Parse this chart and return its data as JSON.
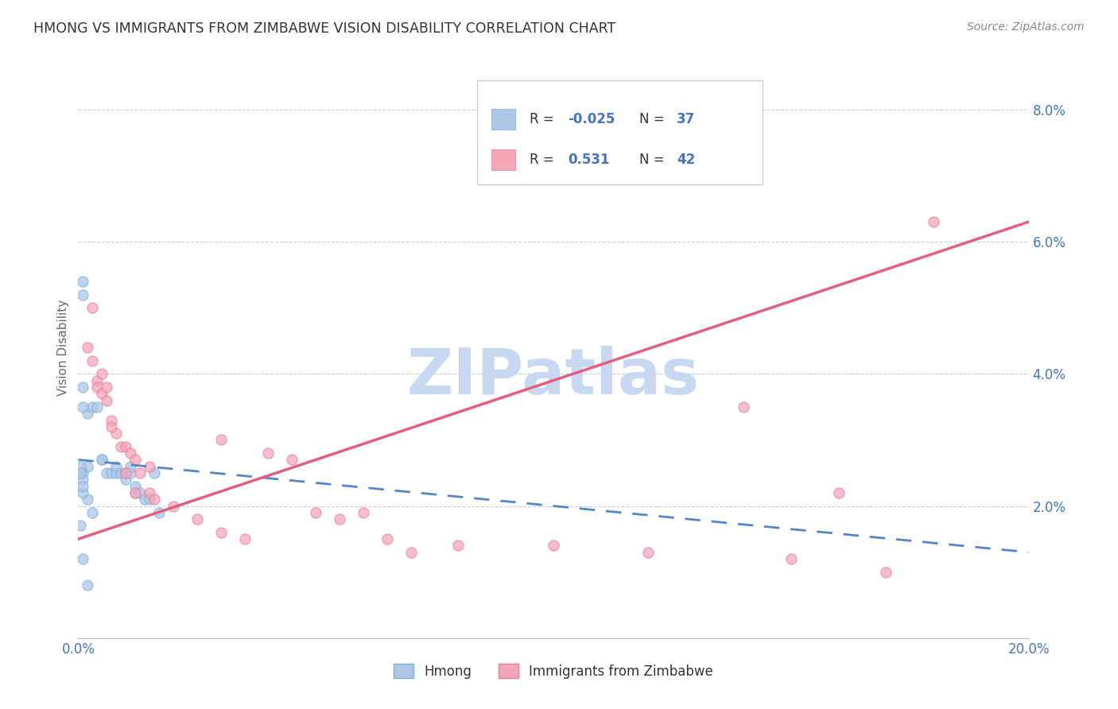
{
  "title": "HMONG VS IMMIGRANTS FROM ZIMBABWE VISION DISABILITY CORRELATION CHART",
  "source": "Source: ZipAtlas.com",
  "ylabel": "Vision Disability",
  "xlim": [
    0.0,
    0.2
  ],
  "ylim": [
    0.0,
    0.088
  ],
  "x_tick_positions": [
    0.0,
    0.04,
    0.08,
    0.12,
    0.16,
    0.2
  ],
  "x_tick_labels": [
    "0.0%",
    "",
    "",
    "",
    "",
    "20.0%"
  ],
  "y_tick_positions": [
    0.0,
    0.02,
    0.04,
    0.06,
    0.08
  ],
  "y_tick_labels": [
    "",
    "2.0%",
    "4.0%",
    "6.0%",
    "8.0%"
  ],
  "hmong_color": "#aec6e8",
  "hmong_edge_color": "#7bafd4",
  "zimbabwe_color": "#f4a7b9",
  "zimbabwe_edge_color": "#e87a9a",
  "hmong_line_color": "#5585c8",
  "zimbabwe_line_color": "#e0607e",
  "watermark": "ZIPatlas",
  "watermark_color": "#c8d8f0",
  "tick_color": "#4472c4",
  "grid_color": "#c0cfe0",
  "hmong_x": [
    0.001,
    0.001,
    0.002,
    0.003,
    0.004,
    0.005,
    0.005,
    0.006,
    0.007,
    0.008,
    0.008,
    0.009,
    0.01,
    0.01,
    0.011,
    0.011,
    0.012,
    0.012,
    0.013,
    0.014,
    0.015,
    0.016,
    0.017,
    0.001,
    0.002,
    0.001,
    0.002,
    0.003,
    0.001,
    0.001,
    0.001,
    0.001,
    0.0005,
    0.0005,
    0.0005,
    0.001,
    0.002
  ],
  "hmong_y": [
    0.054,
    0.052,
    0.034,
    0.035,
    0.035,
    0.027,
    0.027,
    0.025,
    0.025,
    0.025,
    0.026,
    0.025,
    0.024,
    0.025,
    0.025,
    0.026,
    0.023,
    0.022,
    0.022,
    0.021,
    0.021,
    0.025,
    0.019,
    0.038,
    0.026,
    0.035,
    0.021,
    0.019,
    0.025,
    0.024,
    0.022,
    0.023,
    0.026,
    0.025,
    0.017,
    0.012,
    0.008
  ],
  "zimbabwe_x": [
    0.002,
    0.003,
    0.004,
    0.004,
    0.005,
    0.006,
    0.007,
    0.008,
    0.009,
    0.01,
    0.011,
    0.012,
    0.013,
    0.015,
    0.016,
    0.02,
    0.025,
    0.03,
    0.035,
    0.04,
    0.045,
    0.05,
    0.055,
    0.06,
    0.065,
    0.08,
    0.1,
    0.12,
    0.15,
    0.16,
    0.003,
    0.005,
    0.006,
    0.007,
    0.01,
    0.012,
    0.015,
    0.03,
    0.07,
    0.17,
    0.18,
    0.14
  ],
  "zimbabwe_y": [
    0.044,
    0.042,
    0.039,
    0.038,
    0.037,
    0.036,
    0.033,
    0.031,
    0.029,
    0.029,
    0.028,
    0.027,
    0.025,
    0.022,
    0.021,
    0.02,
    0.018,
    0.016,
    0.015,
    0.028,
    0.027,
    0.019,
    0.018,
    0.019,
    0.015,
    0.014,
    0.014,
    0.013,
    0.012,
    0.022,
    0.05,
    0.04,
    0.038,
    0.032,
    0.025,
    0.022,
    0.026,
    0.03,
    0.013,
    0.01,
    0.063,
    0.035
  ]
}
